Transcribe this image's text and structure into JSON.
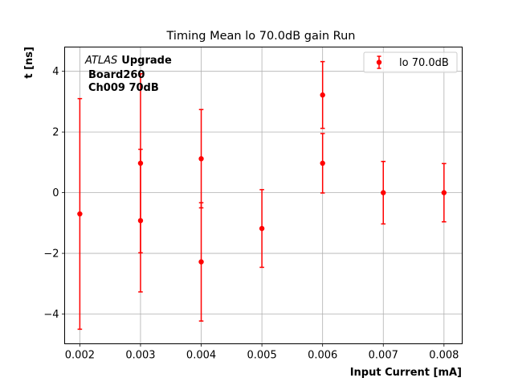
{
  "chart_data": {
    "type": "scatter",
    "title": "Timing Mean lo 70.0dB gain Run",
    "xlabel": "Input Current [mA]",
    "ylabel": "t [ns]",
    "xlim": [
      0.00175,
      0.0083
    ],
    "ylim": [
      -4.98,
      4.8
    ],
    "xticks": [
      0.002,
      0.003,
      0.004,
      0.005,
      0.006,
      0.007,
      0.008
    ],
    "xtick_labels": [
      "0.002",
      "0.003",
      "0.004",
      "0.005",
      "0.006",
      "0.007",
      "0.008"
    ],
    "yticks": [
      -4,
      -2,
      0,
      2,
      4
    ],
    "ytick_labels": [
      "−4",
      "−2",
      "0",
      "2",
      "4"
    ],
    "grid": true,
    "legend_position": "top-right",
    "annotation": {
      "atlas": "ATLAS",
      "upgrade": "Upgrade",
      "board": "Board260",
      "channel": "Ch009 70dB"
    },
    "series": [
      {
        "name": "lo 70.0dB",
        "color": "#ff0000",
        "marker": "circle",
        "points": [
          {
            "x": 0.002,
            "y": -0.7,
            "yerr": 3.8
          },
          {
            "x": 0.003,
            "y": 0.97,
            "yerr": 2.95
          },
          {
            "x": 0.003,
            "y": -0.92,
            "yerr": 2.35
          },
          {
            "x": 0.004,
            "y": 1.12,
            "yerr": 1.62
          },
          {
            "x": 0.004,
            "y": -2.28,
            "yerr": 1.95
          },
          {
            "x": 0.005,
            "y": -1.18,
            "yerr": 1.28
          },
          {
            "x": 0.006,
            "y": 3.22,
            "yerr": 1.1
          },
          {
            "x": 0.006,
            "y": 0.97,
            "yerr": 0.98
          },
          {
            "x": 0.007,
            "y": 0.0,
            "yerr": 1.03
          },
          {
            "x": 0.008,
            "y": 0.0,
            "yerr": 0.96
          }
        ]
      }
    ]
  }
}
